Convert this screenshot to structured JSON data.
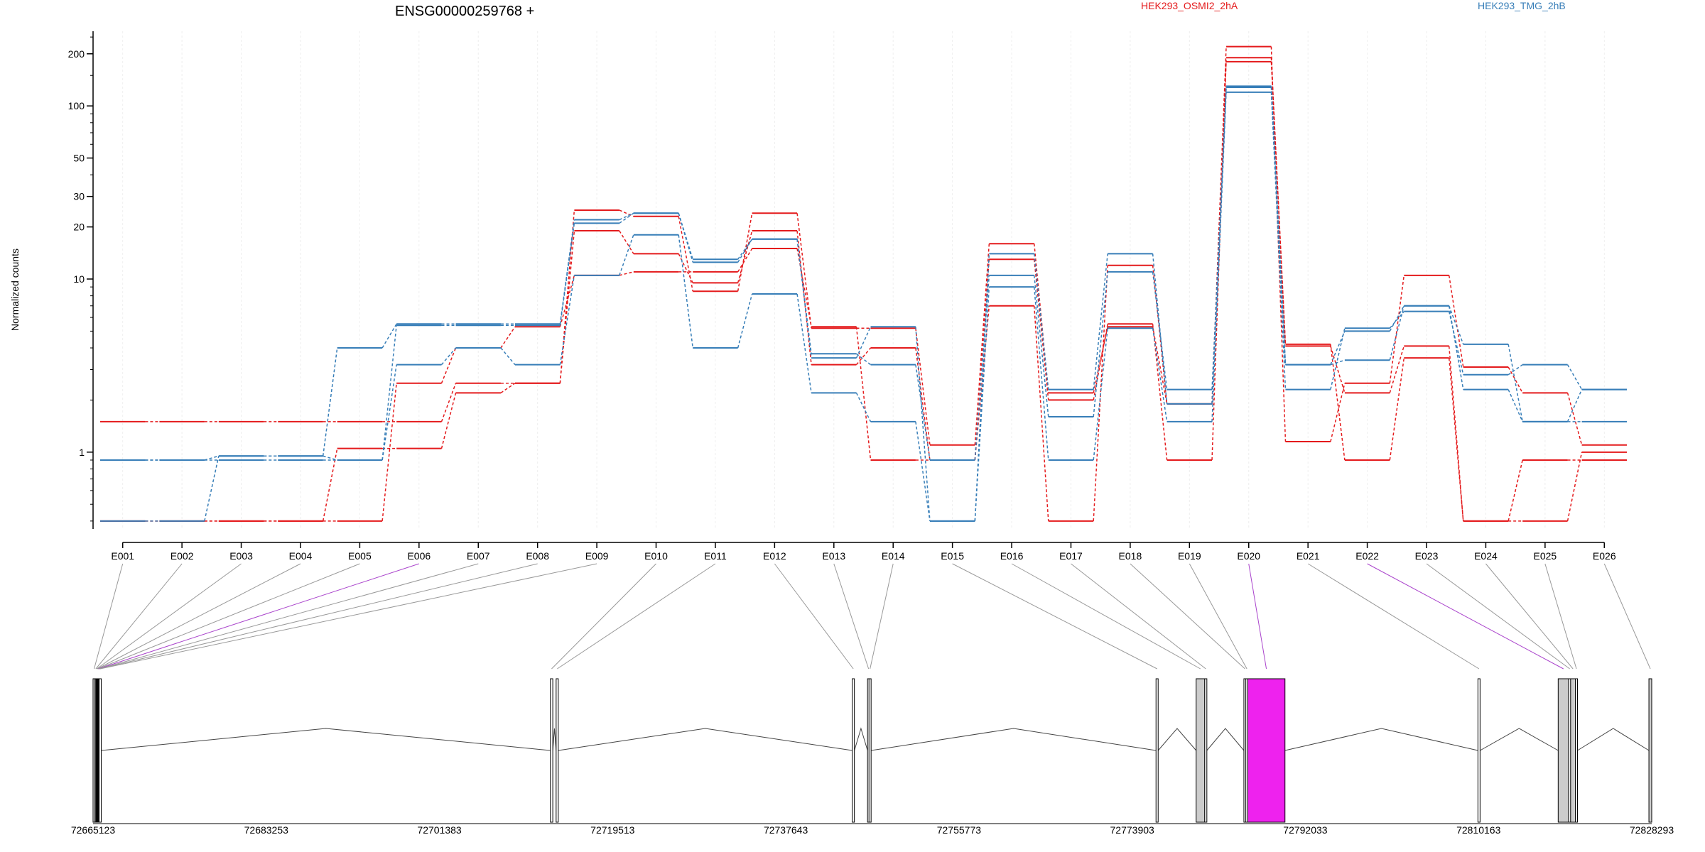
{
  "title": "ENSG00000259768 +",
  "colors": {
    "red": "#e41a1c",
    "blue": "#377eb8",
    "highlight": "#ee22ee",
    "grey_exon": "#cccccc"
  },
  "chart_data": {
    "type": "line",
    "ylabel": "Normalized counts",
    "yscale": "log",
    "yticks": [
      "1",
      "10",
      "20",
      "30",
      "50",
      "100",
      "200"
    ],
    "categories": [
      "E001",
      "E002",
      "E003",
      "E004",
      "E005",
      "E006",
      "E007",
      "E008",
      "E009",
      "E010",
      "E011",
      "E012",
      "E013",
      "E014",
      "E015",
      "E016",
      "E017",
      "E018",
      "E019",
      "E020",
      "E021",
      "E022",
      "E023",
      "E024",
      "E025",
      "E026"
    ],
    "legend": [
      {
        "name": "HEK293_OSMI2_2hA",
        "color": "#e41a1c"
      },
      {
        "name": "HEK293_TMG_2hB",
        "color": "#377eb8"
      }
    ],
    "series": [
      {
        "color": "#e41a1c",
        "values": [
          1.5,
          1.5,
          1.5,
          1.5,
          1.5,
          1.5,
          2.5,
          2.5,
          25,
          23,
          8.5,
          24,
          5.2,
          5.2,
          1.1,
          16,
          2.2,
          5.3,
          1.9,
          220,
          1.15,
          2.5,
          10.5,
          3.1,
          2.2,
          1.1
        ]
      },
      {
        "color": "#e41a1c",
        "values": [
          0.4,
          0.4,
          0.4,
          0.4,
          1.05,
          1.05,
          2.2,
          2.5,
          19,
          14,
          9.5,
          19,
          3.2,
          4.0,
          0.9,
          13,
          2.0,
          5.5,
          0.9,
          190,
          4.1,
          2.2,
          4.1,
          0.4,
          0.9,
          0.9
        ]
      },
      {
        "color": "#e41a1c",
        "values": [
          0.4,
          0.4,
          0.4,
          0.4,
          0.4,
          2.5,
          4.0,
          5.3,
          10.5,
          11,
          11,
          15,
          5.3,
          0.9,
          0.9,
          7.0,
          0.4,
          12,
          1.9,
          180,
          4.2,
          0.9,
          3.5,
          0.4,
          0.4,
          1.0
        ]
      },
      {
        "color": "#377eb8",
        "values": [
          0.9,
          0.9,
          0.9,
          0.9,
          0.9,
          5.4,
          5.4,
          5.4,
          21,
          24,
          12.5,
          17,
          3.5,
          5.3,
          0.4,
          14,
          2.3,
          14,
          1.9,
          130,
          3.2,
          5.0,
          7.0,
          2.3,
          1.5,
          2.3
        ]
      },
      {
        "color": "#377eb8",
        "values": [
          0.4,
          0.4,
          0.95,
          0.95,
          4.0,
          5.5,
          5.5,
          5.5,
          22,
          24,
          13,
          17,
          3.7,
          3.2,
          0.9,
          10.5,
          1.6,
          11,
          2.3,
          128,
          3.2,
          3.4,
          7.0,
          4.2,
          1.5,
          1.5
        ]
      },
      {
        "color": "#377eb8",
        "values": [
          0.9,
          0.9,
          0.95,
          0.95,
          0.9,
          3.2,
          4.0,
          3.2,
          10.5,
          18,
          4.0,
          8.2,
          2.2,
          1.5,
          0.4,
          9.0,
          0.9,
          5.2,
          1.5,
          120,
          2.3,
          5.2,
          6.5,
          2.8,
          3.2,
          2.3
        ]
      }
    ]
  },
  "genome": {
    "coord_ticks": [
      "72665123",
      "72683253",
      "72701383",
      "72719513",
      "72737643",
      "72755773",
      "72773903",
      "72792033",
      "72810163",
      "72828293"
    ],
    "start": 72665123,
    "end": 72828293,
    "exons": [
      {
        "id": "E001",
        "start": 72665123,
        "end": 72665300,
        "color": "#ffffff"
      },
      {
        "id": "E002",
        "start": 72665300,
        "end": 72665400,
        "color": "#ffffff"
      },
      {
        "id": "E003",
        "start": 72665400,
        "end": 72665460,
        "color": "#ffffff"
      },
      {
        "id": "E004",
        "start": 72665460,
        "end": 72665520,
        "color": "#ffffff"
      },
      {
        "id": "E005",
        "start": 72665520,
        "end": 72665580,
        "color": "#ffffff"
      },
      {
        "id": "E006",
        "start": 72665580,
        "end": 72665640,
        "color": "#ffffff"
      },
      {
        "id": "E007",
        "start": 72665640,
        "end": 72665700,
        "color": "#ffffff"
      },
      {
        "id": "E008",
        "start": 72665700,
        "end": 72665760,
        "color": "#ffffff"
      },
      {
        "id": "E009",
        "start": 72665760,
        "end": 72665820,
        "color": "#ffffff"
      },
      {
        "id": "E010",
        "start": 72713000,
        "end": 72713250,
        "color": "#ffffff"
      },
      {
        "id": "E011",
        "start": 72713600,
        "end": 72713800,
        "color": "#ffffff"
      },
      {
        "id": "E012",
        "start": 72744600,
        "end": 72744800,
        "color": "#ffffff"
      },
      {
        "id": "E013",
        "start": 72746200,
        "end": 72746350,
        "color": "#ffffff"
      },
      {
        "id": "E014",
        "start": 72746350,
        "end": 72746500,
        "color": "#ffffff"
      },
      {
        "id": "E015",
        "start": 72776400,
        "end": 72776600,
        "color": "#ffffff"
      },
      {
        "id": "E016",
        "start": 72780600,
        "end": 72781500,
        "color": "#cccccc"
      },
      {
        "id": "E017",
        "start": 72781500,
        "end": 72781650,
        "color": "#ffffff"
      },
      {
        "id": "E018",
        "start": 72785600,
        "end": 72785800,
        "color": "#ffffff"
      },
      {
        "id": "E019",
        "start": 72785800,
        "end": 72786000,
        "color": "#ffffff"
      },
      {
        "id": "E020",
        "start": 72786000,
        "end": 72789900,
        "color": "#ee22ee"
      },
      {
        "id": "E021",
        "start": 72810100,
        "end": 72810300,
        "color": "#ffffff"
      },
      {
        "id": "E022",
        "start": 72818500,
        "end": 72819600,
        "color": "#cccccc"
      },
      {
        "id": "E023",
        "start": 72819600,
        "end": 72819800,
        "color": "#ffffff"
      },
      {
        "id": "E024",
        "start": 72819800,
        "end": 72820300,
        "color": "#cccccc"
      },
      {
        "id": "E025",
        "start": 72820300,
        "end": 72820450,
        "color": "#ffffff"
      },
      {
        "id": "E026",
        "start": 72828000,
        "end": 72828293,
        "color": "#cccccc"
      }
    ],
    "highlighted_links": [
      "E006",
      "E020",
      "E022"
    ]
  }
}
